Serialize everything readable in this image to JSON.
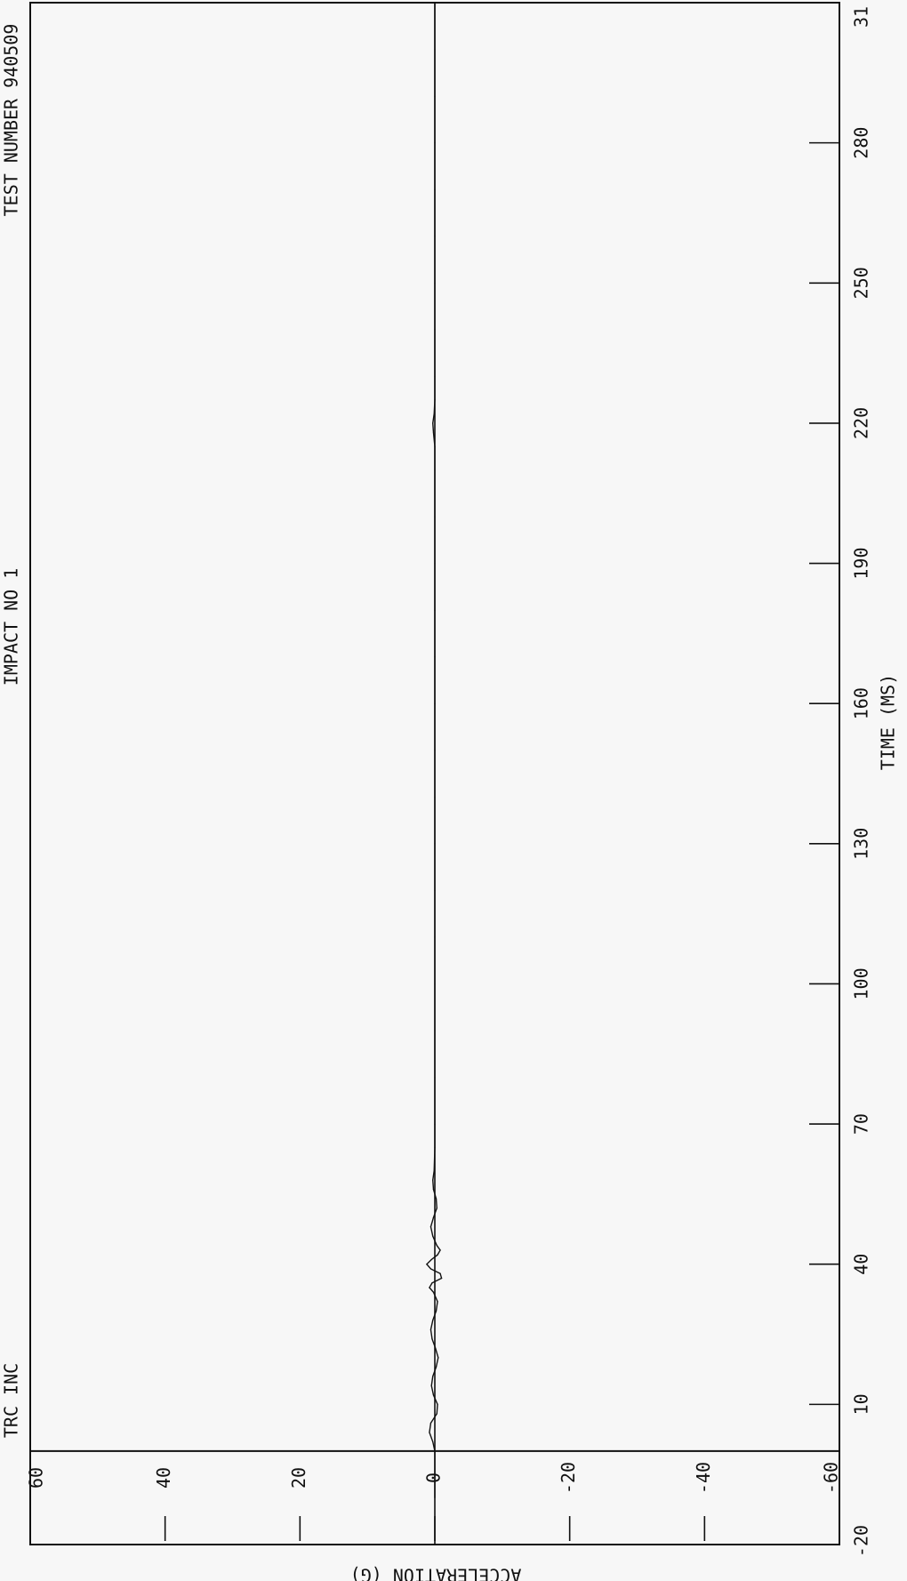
{
  "chart_data": {
    "type": "line",
    "orientation": "rotated-90",
    "header": {
      "left": "TRC INC",
      "center": "IMPACT NO  1",
      "right": "TEST NUMBER  940509"
    },
    "xlabel": "TIME   (MS)",
    "ylabel": "ACCELERATION   (G)",
    "xlim": [
      -20,
      310
    ],
    "ylim": [
      -60,
      60
    ],
    "x_ticks": [
      "-20",
      "10",
      "40",
      "70",
      "100",
      "130",
      "160",
      "190",
      "220",
      "250",
      "280",
      "31"
    ],
    "y_ticks": [
      "60",
      "40",
      "20",
      "0",
      "-20",
      "-40",
      "-60"
    ],
    "series": [
      {
        "x": [
          -10,
          0,
          2,
          4,
          6,
          8,
          10,
          12,
          14,
          16,
          18,
          20,
          22,
          24,
          26,
          28,
          30,
          32,
          34,
          35,
          36,
          37,
          38,
          39,
          40,
          41,
          42,
          43,
          44,
          46,
          48,
          50,
          52,
          54,
          56,
          58,
          60,
          65,
          70,
          80,
          90,
          100,
          110,
          120,
          130,
          140,
          150,
          160,
          170,
          180,
          190,
          200,
          210,
          215,
          218,
          220,
          222,
          225,
          230,
          240,
          250,
          260,
          270,
          280,
          290,
          300,
          310
        ],
        "y": [
          0,
          0,
          0.3,
          0.8,
          0.6,
          -0.3,
          -0.4,
          0.2,
          0.5,
          0.3,
          -0.2,
          -0.5,
          -0.1,
          0.4,
          0.6,
          0.3,
          -0.2,
          -0.4,
          0.2,
          0.8,
          0.4,
          -1.0,
          -0.8,
          0.6,
          1.2,
          0.5,
          -0.4,
          -0.8,
          -0.3,
          0.3,
          0.6,
          0.2,
          -0.3,
          -0.2,
          0.2,
          0.3,
          0.1,
          0.0,
          0.0,
          0.0,
          0.0,
          0.0,
          0.0,
          0.0,
          0.0,
          0.0,
          0.0,
          0.0,
          0.0,
          0.0,
          0.0,
          0.0,
          0.0,
          0.0,
          0.2,
          0.3,
          0.1,
          0.0,
          0.0,
          0.0,
          0.0,
          0.0,
          0.0,
          0.0,
          0.0,
          0.0,
          0.0
        ]
      }
    ],
    "grid": false
  }
}
